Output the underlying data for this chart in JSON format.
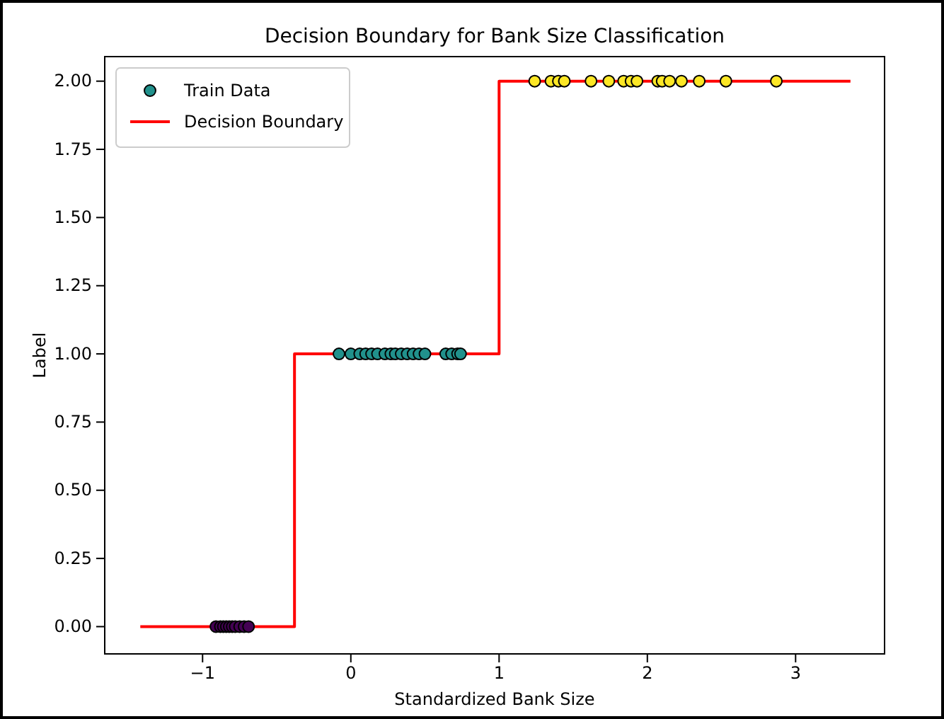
{
  "chart_data": {
    "type": "scatter",
    "title": "Decision Boundary for Bank Size Classification",
    "xlabel": "Standardized Bank Size",
    "ylabel": "Label",
    "xlim": [
      -1.66,
      3.6
    ],
    "xticks": [
      {
        "value": -1,
        "label": "−1"
      },
      0,
      1,
      2,
      3
    ],
    "ylim": [
      -0.1,
      2.09
    ],
    "yticks": [
      {
        "value": 0,
        "label": "0.00"
      },
      {
        "value": 0.25,
        "label": "0.25"
      },
      {
        "value": 0.5,
        "label": "0.50"
      },
      {
        "value": 0.75,
        "label": "0.75"
      },
      {
        "value": 1,
        "label": "1.00"
      },
      {
        "value": 1.25,
        "label": "1.25"
      },
      {
        "value": 1.5,
        "label": "1.50"
      },
      {
        "value": 1.75,
        "label": "1.75"
      },
      {
        "value": 2,
        "label": "2.00"
      }
    ],
    "grid": false,
    "legend": "top left",
    "series": [
      {
        "name": "Decision Boundary",
        "type": "line",
        "color": "#ff0000",
        "x": [
          -1.42,
          -0.38,
          -0.38,
          1.0,
          1.0,
          3.37
        ],
        "values": [
          0,
          0,
          1,
          1,
          2,
          2
        ]
      },
      {
        "name": "Train Data",
        "color": "#21918c",
        "marker": "circle",
        "x": [
          -0.91,
          -0.88,
          -0.86,
          -0.84,
          -0.82,
          -0.8,
          -0.78,
          -0.75,
          -0.72,
          -0.69,
          -0.08,
          0.0,
          0.06,
          0.1,
          0.14,
          0.18,
          0.23,
          0.27,
          0.3,
          0.34,
          0.38,
          0.42,
          0.46,
          0.5,
          0.64,
          0.68,
          0.72,
          0.74,
          1.24,
          1.35,
          1.4,
          1.44,
          1.62,
          1.74,
          1.84,
          1.89,
          1.93,
          2.07,
          2.1,
          2.15,
          2.23,
          2.35,
          2.53,
          2.87
        ],
        "values": [
          0,
          0,
          0,
          0,
          0,
          0,
          0,
          0,
          0,
          0,
          1,
          1,
          1,
          1,
          1,
          1,
          1,
          1,
          1,
          1,
          1,
          1,
          1,
          1,
          1,
          1,
          1,
          1,
          2,
          2,
          2,
          2,
          2,
          2,
          2,
          2,
          2,
          2,
          2,
          2,
          2,
          2,
          2,
          2
        ],
        "colors": [
          "#440154",
          "#440154",
          "#440154",
          "#440154",
          "#440154",
          "#440154",
          "#440154",
          "#440154",
          "#440154",
          "#440154",
          "#21918c",
          "#21918c",
          "#21918c",
          "#21918c",
          "#21918c",
          "#21918c",
          "#21918c",
          "#21918c",
          "#21918c",
          "#21918c",
          "#21918c",
          "#21918c",
          "#21918c",
          "#21918c",
          "#21918c",
          "#21918c",
          "#21918c",
          "#21918c",
          "#fde725",
          "#fde725",
          "#fde725",
          "#fde725",
          "#fde725",
          "#fde725",
          "#fde725",
          "#fde725",
          "#fde725",
          "#fde725",
          "#fde725",
          "#fde725",
          "#fde725",
          "#fde725",
          "#fde725",
          "#fde725"
        ]
      }
    ]
  }
}
